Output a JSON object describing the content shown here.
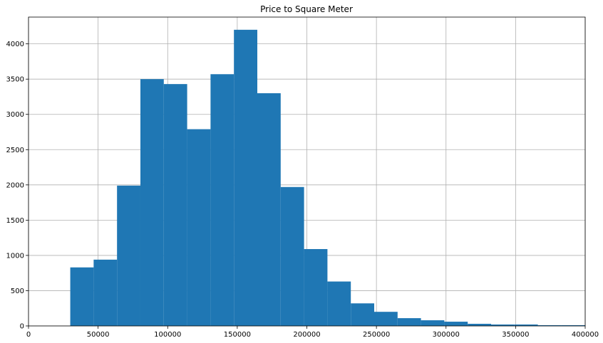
{
  "chart_data": {
    "type": "bar",
    "title": "Price to Square Meter",
    "xlabel": "",
    "ylabel": "",
    "xlim": [
      0,
      400000
    ],
    "ylim": [
      0,
      4380
    ],
    "grid": true,
    "bar_color": "#1f77b4",
    "bins": [
      {
        "x0": 30000,
        "x1": 46800,
        "count": 830
      },
      {
        "x0": 46800,
        "x1": 63600,
        "count": 940
      },
      {
        "x0": 63600,
        "x1": 80400,
        "count": 1990
      },
      {
        "x0": 80400,
        "x1": 97200,
        "count": 3500
      },
      {
        "x0": 97200,
        "x1": 114000,
        "count": 3430
      },
      {
        "x0": 114000,
        "x1": 130800,
        "count": 2790
      },
      {
        "x0": 130800,
        "x1": 147600,
        "count": 3570
      },
      {
        "x0": 147600,
        "x1": 164400,
        "count": 4200
      },
      {
        "x0": 164400,
        "x1": 181200,
        "count": 3300
      },
      {
        "x0": 181200,
        "x1": 198000,
        "count": 1970
      },
      {
        "x0": 198000,
        "x1": 214800,
        "count": 1090
      },
      {
        "x0": 214800,
        "x1": 231600,
        "count": 630
      },
      {
        "x0": 231600,
        "x1": 248400,
        "count": 320
      },
      {
        "x0": 248400,
        "x1": 265200,
        "count": 200
      },
      {
        "x0": 265200,
        "x1": 282000,
        "count": 110
      },
      {
        "x0": 282000,
        "x1": 298800,
        "count": 80
      },
      {
        "x0": 298800,
        "x1": 315600,
        "count": 60
      },
      {
        "x0": 315600,
        "x1": 332400,
        "count": 30
      },
      {
        "x0": 332400,
        "x1": 349200,
        "count": 20
      },
      {
        "x0": 349200,
        "x1": 366000,
        "count": 20
      },
      {
        "x0": 366000,
        "x1": 382800,
        "count": 10
      },
      {
        "x0": 382800,
        "x1": 400000,
        "count": 10
      }
    ],
    "x_ticks": [
      0,
      50000,
      100000,
      150000,
      200000,
      250000,
      300000,
      350000,
      400000
    ],
    "y_ticks": [
      0,
      500,
      1000,
      1500,
      2000,
      2500,
      3000,
      3500,
      4000
    ]
  }
}
